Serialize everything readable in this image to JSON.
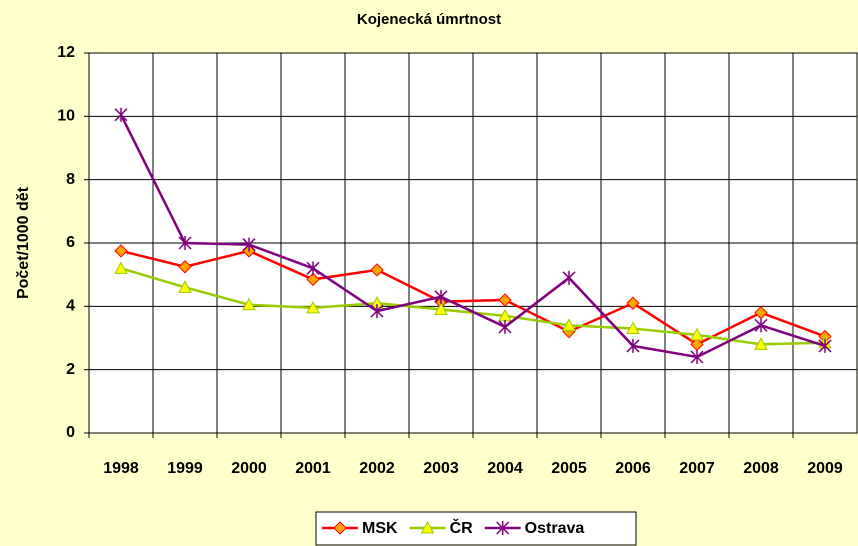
{
  "chart_data": {
    "type": "line",
    "title": "Kojenecká úmrtnost",
    "y_label": "Počet/1000 dět",
    "categories": [
      "1998",
      "1999",
      "2000",
      "2001",
      "2002",
      "2003",
      "2004",
      "2005",
      "2006",
      "2007",
      "2008",
      "2009"
    ],
    "series": [
      {
        "name": "MSK",
        "color": "#ff0000",
        "marker": "diamond",
        "marker_color": "#ffa500",
        "values": [
          5.75,
          5.25,
          5.75,
          4.85,
          5.15,
          4.15,
          4.2,
          3.2,
          4.1,
          2.8,
          3.8,
          3.05
        ]
      },
      {
        "name": "ČR",
        "color": "#99cc00",
        "marker": "triangle",
        "marker_color": "#ffff00",
        "values": [
          5.2,
          4.6,
          4.05,
          3.95,
          4.1,
          3.9,
          3.7,
          3.4,
          3.3,
          3.1,
          2.8,
          2.85
        ]
      },
      {
        "name": "Ostrava",
        "color": "#800080",
        "marker": "star",
        "marker_color": "#800080",
        "values": [
          10.05,
          6.0,
          5.95,
          5.2,
          3.85,
          4.3,
          3.35,
          4.9,
          2.75,
          2.4,
          3.4,
          2.75
        ]
      }
    ],
    "ylim": [
      0,
      12
    ],
    "yticks": [
      0,
      2,
      4,
      6,
      8,
      10,
      12
    ],
    "grid": true,
    "legend": "bottom"
  }
}
